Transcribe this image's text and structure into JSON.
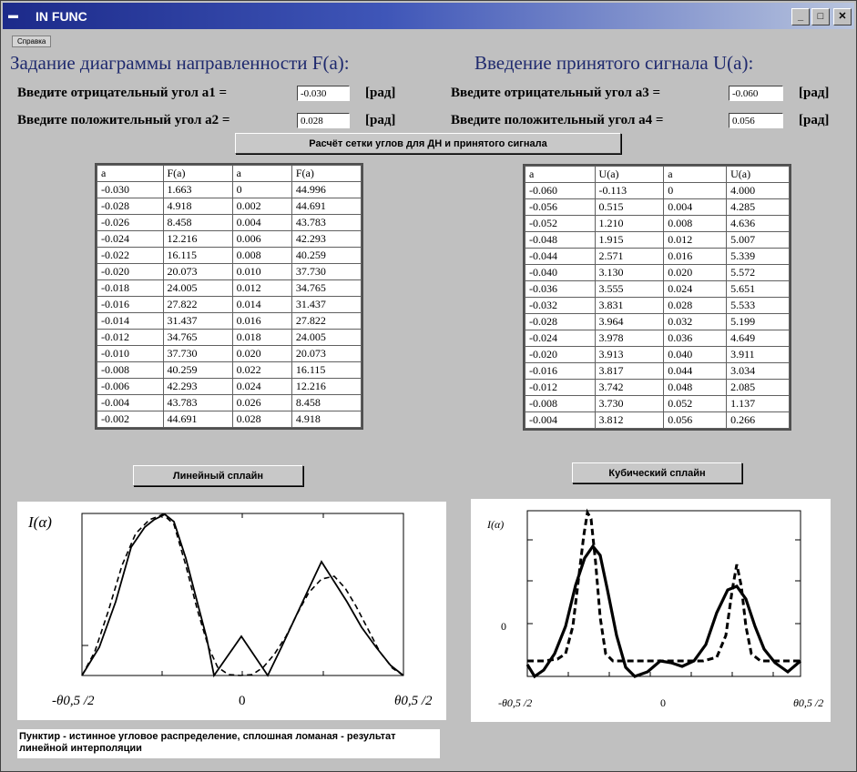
{
  "window": {
    "title": "IN FUNC",
    "minimize": "_",
    "maximize": "□",
    "close": "✕"
  },
  "menu": {
    "help": "Справка"
  },
  "left": {
    "heading": "Задание диаграммы направленности F(a):",
    "neg_label": "Введите отрицательный угол  a1 =",
    "neg_value": "-0.030",
    "pos_label": "Введите положительный угол a2 =",
    "pos_value": "0.028",
    "unit": "[рад]"
  },
  "right": {
    "heading": "Введение принятого сигнала U(a):",
    "neg_label": "Введите отрицательный угол  a3 =",
    "neg_value": "-0.060",
    "pos_label": "Введите положительный угол  a4 =",
    "pos_value": "0.056",
    "unit": "[рад]"
  },
  "buttons": {
    "calc": "Расчёт сетки углов для ДН и принятого сигнала",
    "linear": "Линейный сплайн",
    "cubic": "Кубический сплайн"
  },
  "table_f": {
    "headers": [
      "a",
      "F(a)",
      "a",
      "F(a)"
    ],
    "rows": [
      [
        "-0.030",
        "1.663",
        "0",
        "44.996"
      ],
      [
        "-0.028",
        "4.918",
        "0.002",
        "44.691"
      ],
      [
        "-0.026",
        "8.458",
        "0.004",
        "43.783"
      ],
      [
        "-0.024",
        "12.216",
        "0.006",
        "42.293"
      ],
      [
        "-0.022",
        "16.115",
        "0.008",
        "40.259"
      ],
      [
        "-0.020",
        "20.073",
        "0.010",
        "37.730"
      ],
      [
        "-0.018",
        "24.005",
        "0.012",
        "34.765"
      ],
      [
        "-0.016",
        "27.822",
        "0.014",
        "31.437"
      ],
      [
        "-0.014",
        "31.437",
        "0.016",
        "27.822"
      ],
      [
        "-0.012",
        "34.765",
        "0.018",
        "24.005"
      ],
      [
        "-0.010",
        "37.730",
        "0.020",
        "20.073"
      ],
      [
        "-0.008",
        "40.259",
        "0.022",
        "16.115"
      ],
      [
        "-0.006",
        "42.293",
        "0.024",
        "12.216"
      ],
      [
        "-0.004",
        "43.783",
        "0.026",
        "8.458"
      ],
      [
        "-0.002",
        "44.691",
        "0.028",
        "4.918"
      ]
    ]
  },
  "table_u": {
    "headers": [
      "a",
      "U(a)",
      "a",
      "U(a)"
    ],
    "rows": [
      [
        "-0.060",
        "-0.113",
        "0",
        "4.000"
      ],
      [
        "-0.056",
        "0.515",
        "0.004",
        "4.285"
      ],
      [
        "-0.052",
        "1.210",
        "0.008",
        "4.636"
      ],
      [
        "-0.048",
        "1.915",
        "0.012",
        "5.007"
      ],
      [
        "-0.044",
        "2.571",
        "0.016",
        "5.339"
      ],
      [
        "-0.040",
        "3.130",
        "0.020",
        "5.572"
      ],
      [
        "-0.036",
        "3.555",
        "0.024",
        "5.651"
      ],
      [
        "-0.032",
        "3.831",
        "0.028",
        "5.533"
      ],
      [
        "-0.028",
        "3.964",
        "0.032",
        "5.199"
      ],
      [
        "-0.024",
        "3.978",
        "0.036",
        "4.649"
      ],
      [
        "-0.020",
        "3.913",
        "0.040",
        "3.911"
      ],
      [
        "-0.016",
        "3.817",
        "0.044",
        "3.034"
      ],
      [
        "-0.012",
        "3.742",
        "0.048",
        "2.085"
      ],
      [
        "-0.008",
        "3.730",
        "0.052",
        "1.137"
      ],
      [
        "-0.004",
        "3.812",
        "0.056",
        "0.266"
      ]
    ]
  },
  "plot_left": {
    "ylabel": "I(α)",
    "x_left": "-θ0,5 /2",
    "x_mid": "0",
    "x_right": "θ0,5 /2"
  },
  "plot_right": {
    "ylabel": "I(α)",
    "y_zero": "0",
    "x_left": "-θ0,5 /2",
    "x_mid": "0",
    "x_right": "θ0,5 /2"
  },
  "note": "Пунктир - истинное угловое распределение, сплошная ломаная - результат линейной интерполяции"
}
